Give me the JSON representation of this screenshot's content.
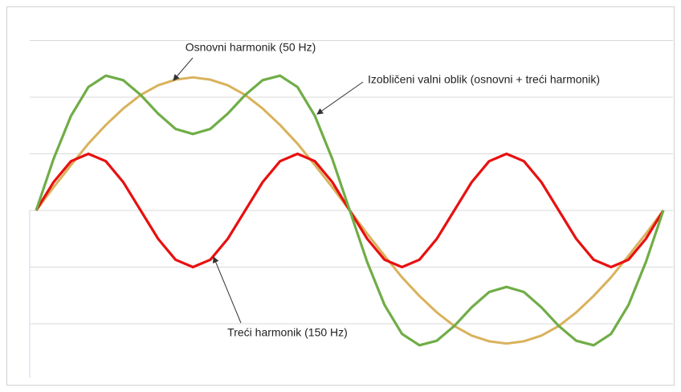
{
  "chart_data": {
    "type": "line",
    "x": [
      0,
      10,
      20,
      30,
      40,
      50,
      60,
      70,
      80,
      90,
      100,
      110,
      120,
      130,
      140,
      150,
      160,
      170,
      180,
      190,
      200,
      210,
      220,
      230,
      240,
      250,
      260,
      270,
      280,
      290,
      300,
      310,
      320,
      330,
      340,
      350,
      360
    ],
    "xlim": [
      0,
      360
    ],
    "ylim": [
      -3,
      3
    ],
    "yticks": [
      -2,
      -1,
      0,
      1,
      2,
      3
    ],
    "grid": true,
    "series": [
      {
        "name": "Osnovni harmonik (50 Hz)",
        "color": "#d9b25c",
        "values": [
          0,
          0.41,
          0.8,
          1.18,
          1.51,
          1.8,
          2.04,
          2.21,
          2.31,
          2.35,
          2.31,
          2.21,
          2.04,
          1.8,
          1.51,
          1.18,
          0.8,
          0.41,
          0,
          -0.41,
          -0.8,
          -1.18,
          -1.51,
          -1.8,
          -2.04,
          -2.21,
          -2.31,
          -2.35,
          -2.31,
          -2.21,
          -2.04,
          -1.8,
          -1.51,
          -1.18,
          -0.8,
          -0.41,
          0
        ]
      },
      {
        "name": "Treći harmonik (150 Hz)",
        "color": "#e81010",
        "values": [
          0,
          0.5,
          0.87,
          1,
          0.87,
          0.5,
          0,
          -0.5,
          -0.87,
          -1,
          -0.87,
          -0.5,
          0,
          0.5,
          0.87,
          1,
          0.87,
          0.5,
          0,
          -0.5,
          -0.87,
          -1,
          -0.87,
          -0.5,
          0,
          0.5,
          0.87,
          1,
          0.87,
          0.5,
          0,
          -0.5,
          -0.87,
          -1,
          -0.87,
          -0.5,
          0
        ]
      },
      {
        "name": "Izobličeni valni oblik (osnovni + treći harmonik)",
        "color": "#70ad47",
        "values": [
          0,
          0.91,
          1.67,
          2.18,
          2.38,
          2.3,
          2.04,
          1.71,
          1.44,
          1.35,
          1.44,
          1.71,
          2.04,
          2.3,
          2.38,
          2.18,
          1.67,
          0.91,
          0,
          -0.91,
          -1.67,
          -2.18,
          -2.38,
          -2.3,
          -2.04,
          -1.71,
          -1.44,
          -1.35,
          -1.44,
          -1.71,
          -2.04,
          -2.3,
          -2.38,
          -2.18,
          -1.67,
          -0.91,
          0
        ]
      }
    ]
  }
}
